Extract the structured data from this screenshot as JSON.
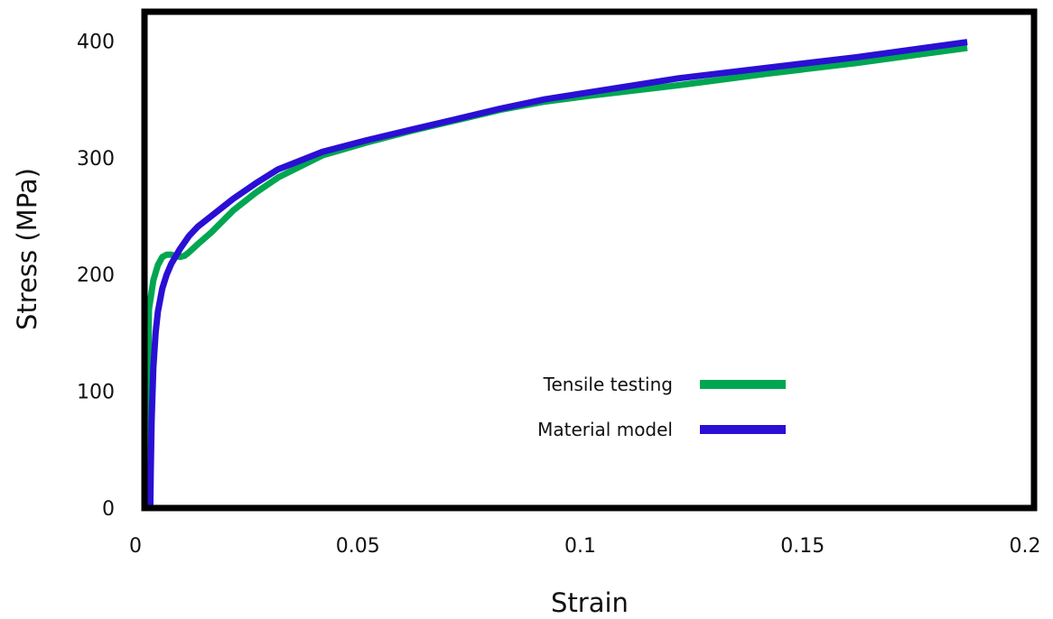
{
  "chart_data": {
    "type": "line",
    "title": "",
    "xlabel": "Strain",
    "ylabel": "Stress (MPa)",
    "xlim": [
      0,
      0.2
    ],
    "ylim": [
      0,
      425
    ],
    "x_ticks": [
      0,
      0.05,
      0.1,
      0.15,
      0.2
    ],
    "x_tick_labels": [
      "0",
      "0.05",
      "0.1",
      "0.15",
      "0.2"
    ],
    "y_ticks": [
      0,
      100,
      200,
      300,
      400
    ],
    "y_tick_labels": [
      "0",
      "100",
      "200",
      "300",
      "400"
    ],
    "grid": false,
    "legend_position": "center-right",
    "series": [
      {
        "name": "Tensile testing",
        "color": "#00a651",
        "x": [
          0.0005,
          0.0008,
          0.001,
          0.002,
          0.003,
          0.004,
          0.005,
          0.006,
          0.007,
          0.008,
          0.009,
          0.01,
          0.012,
          0.015,
          0.02,
          0.025,
          0.03,
          0.04,
          0.05,
          0.06,
          0.07,
          0.08,
          0.09,
          0.1,
          0.12,
          0.14,
          0.16,
          0.185
        ],
        "y": [
          0,
          100,
          170,
          195,
          208,
          215,
          217,
          217,
          216,
          215,
          216,
          219,
          226,
          236,
          255,
          270,
          283,
          302,
          313,
          323,
          332,
          341,
          348,
          353,
          362,
          372,
          381,
          394
        ]
      },
      {
        "name": "Material model",
        "color": "#2a0fd4",
        "x": [
          0.0013,
          0.0014,
          0.0016,
          0.002,
          0.0025,
          0.003,
          0.004,
          0.005,
          0.006,
          0.008,
          0.01,
          0.012,
          0.015,
          0.02,
          0.025,
          0.03,
          0.04,
          0.05,
          0.06,
          0.07,
          0.08,
          0.09,
          0.1,
          0.12,
          0.14,
          0.16,
          0.185
        ],
        "y": [
          0,
          30,
          75,
          120,
          150,
          168,
          188,
          200,
          209,
          222,
          233,
          241,
          250,
          265,
          278,
          290,
          305,
          315,
          324,
          333,
          342,
          350,
          356,
          368,
          377,
          386,
          399
        ]
      }
    ]
  }
}
